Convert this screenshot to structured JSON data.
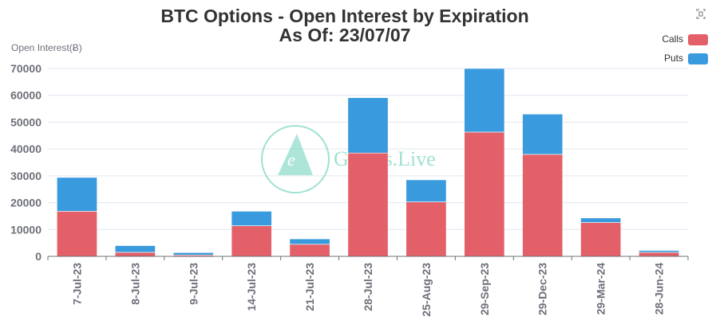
{
  "chart_data": {
    "type": "bar",
    "stacked": true,
    "title": "BTC Options - Open Interest by Expiration",
    "subtitle": "As Of: 23/07/07",
    "ylabel": "Open Interest(Ƀ)",
    "xlabel": "",
    "ylim": [
      0,
      70000
    ],
    "yticks": [
      0,
      10000,
      20000,
      30000,
      40000,
      50000,
      60000,
      70000
    ],
    "categories": [
      "7-Jul-23",
      "8-Jul-23",
      "9-Jul-23",
      "14-Jul-23",
      "21-Jul-23",
      "28-Jul-23",
      "25-Aug-23",
      "29-Sep-23",
      "29-Dec-23",
      "29-Mar-24",
      "28-Jun-24"
    ],
    "series": [
      {
        "name": "Calls",
        "color": "#e46068",
        "values": [
          16800,
          1500,
          500,
          11400,
          4500,
          38500,
          20300,
          46300,
          38000,
          12600,
          1500
        ]
      },
      {
        "name": "Puts",
        "color": "#3a9ade",
        "values": [
          12600,
          2500,
          900,
          5400,
          2000,
          20600,
          8200,
          23700,
          15000,
          1700,
          700
        ]
      }
    ],
    "legend": "top-right",
    "grid": true
  },
  "watermark": {
    "text": "Greeks.Live",
    "letter": "e"
  },
  "toolbar": {
    "icon": "fullscreen-icon"
  }
}
